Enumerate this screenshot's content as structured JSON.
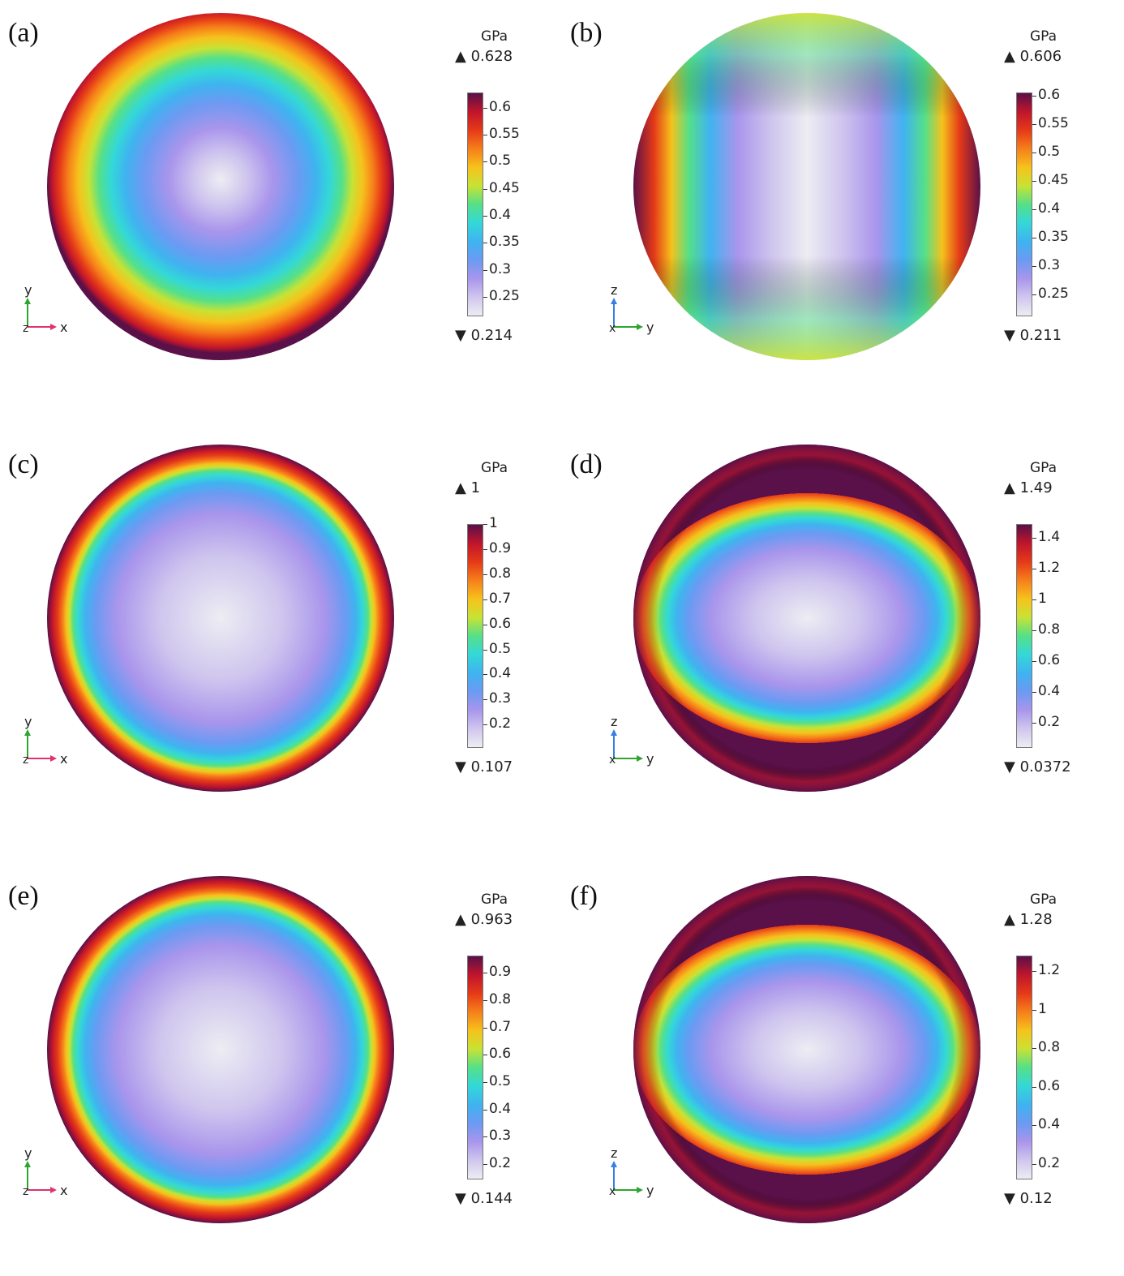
{
  "colors": {
    "scale": [
      "#ededf3",
      "#cfc6ee",
      "#a995ec",
      "#6b9af2",
      "#3fb3f0",
      "#33d8d8",
      "#55e088",
      "#c8e234",
      "#f6c21c",
      "#f67f1a",
      "#e53a18",
      "#c0152c",
      "#5a1048"
    ]
  },
  "chart_data": [
    {
      "type": "heatmap",
      "panel": "(a)",
      "unit": "GPa",
      "max_label": "0.628",
      "min_label": "0.214",
      "range": [
        0.214,
        0.628
      ],
      "ticks": [
        0.25,
        0.3,
        0.35,
        0.4,
        0.45,
        0.5,
        0.55,
        0.6
      ],
      "tick_labels": [
        "0.25",
        "0.3",
        "0.35",
        "0.4",
        "0.45",
        "0.5",
        "0.55",
        "0.6"
      ],
      "axes": [
        "y",
        "x"
      ],
      "pattern": "radial"
    },
    {
      "type": "heatmap",
      "panel": "(b)",
      "unit": "GPa",
      "max_label": "0.606",
      "min_label": "0.211",
      "range": [
        0.211,
        0.606
      ],
      "ticks": [
        0.25,
        0.3,
        0.35,
        0.4,
        0.45,
        0.5,
        0.55,
        0.6
      ],
      "tick_labels": [
        "0.25",
        "0.3",
        "0.35",
        "0.4",
        "0.45",
        "0.5",
        "0.55",
        "0.6"
      ],
      "axes": [
        "z",
        "y"
      ],
      "pattern": "vertical-band"
    },
    {
      "type": "heatmap",
      "panel": "(c)",
      "unit": "GPa",
      "max_label": "1",
      "min_label": "0.107",
      "range": [
        0.107,
        1.0
      ],
      "ticks": [
        0.2,
        0.3,
        0.4,
        0.5,
        0.6,
        0.7,
        0.8,
        0.9,
        1.0
      ],
      "tick_labels": [
        "0.2",
        "0.3",
        "0.4",
        "0.5",
        "0.6",
        "0.7",
        "0.8",
        "0.9",
        "1"
      ],
      "axes": [
        "y",
        "x"
      ],
      "pattern": "ring"
    },
    {
      "type": "heatmap",
      "panel": "(d)",
      "unit": "GPa",
      "max_label": "1.49",
      "min_label": "0.0372",
      "range": [
        0.0372,
        1.49
      ],
      "ticks": [
        0.2,
        0.4,
        0.6,
        0.8,
        1.0,
        1.2,
        1.4
      ],
      "tick_labels": [
        "0.2",
        "0.4",
        "0.6",
        "0.8",
        "1",
        "1.2",
        "1.4"
      ],
      "axes": [
        "z",
        "y"
      ],
      "pattern": "lens"
    },
    {
      "type": "heatmap",
      "panel": "(e)",
      "unit": "GPa",
      "max_label": "0.963",
      "min_label": "0.144",
      "range": [
        0.144,
        0.963
      ],
      "ticks": [
        0.2,
        0.3,
        0.4,
        0.5,
        0.6,
        0.7,
        0.8,
        0.9
      ],
      "tick_labels": [
        "0.2",
        "0.3",
        "0.4",
        "0.5",
        "0.6",
        "0.7",
        "0.8",
        "0.9"
      ],
      "axes": [
        "y",
        "x"
      ],
      "pattern": "ring"
    },
    {
      "type": "heatmap",
      "panel": "(f)",
      "unit": "GPa",
      "max_label": "1.28",
      "min_label": "0.12",
      "range": [
        0.12,
        1.28
      ],
      "ticks": [
        0.2,
        0.4,
        0.6,
        0.8,
        1.0,
        1.2
      ],
      "tick_labels": [
        "0.2",
        "0.4",
        "0.6",
        "0.8",
        "1",
        "1.2"
      ],
      "axes": [
        "z",
        "y"
      ],
      "pattern": "lens"
    }
  ]
}
